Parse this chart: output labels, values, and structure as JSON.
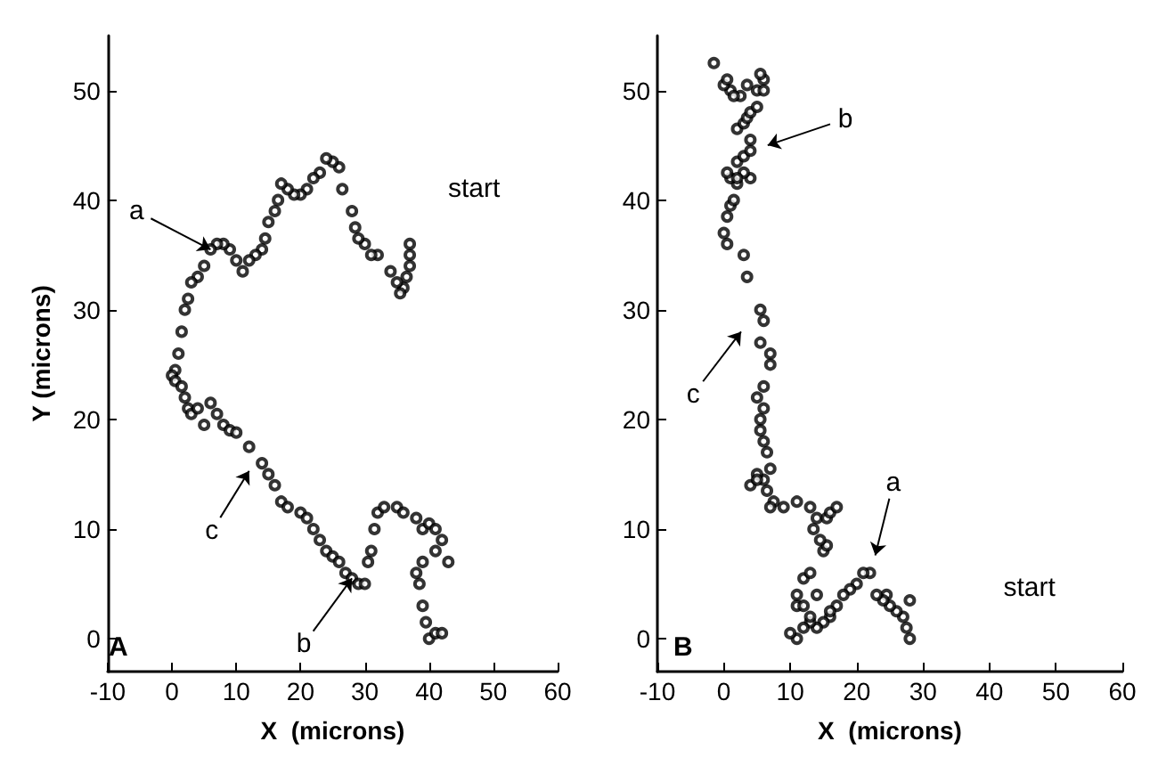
{
  "chart_data": [
    {
      "type": "scatter",
      "title": "A",
      "xlabel": "X  (microns)",
      "ylabel": "Y (microns)",
      "xlim": [
        -10,
        60
      ],
      "ylim": [
        -3,
        55
      ],
      "xticks": [
        -10,
        0,
        10,
        20,
        30,
        40,
        50,
        60
      ],
      "yticks": [
        0,
        10,
        20,
        30,
        40,
        50
      ],
      "marker": "circle",
      "annotations": [
        {
          "text": "a",
          "x": 6,
          "y": 35.5
        },
        "start",
        "c",
        {
          "text": "b",
          "x": 28,
          "y": 5.5
        }
      ],
      "series": [
        {
          "color": "#000000",
          "x": [
            37,
            37,
            37,
            36.5,
            36,
            35.5,
            35,
            34,
            32,
            31,
            30,
            29,
            28.5,
            28,
            26.5,
            26,
            25,
            24,
            23,
            22,
            21,
            20,
            19,
            18,
            17,
            16.5,
            16,
            15,
            14.5,
            14,
            13,
            12,
            11,
            10,
            9,
            8,
            7,
            6,
            5,
            4,
            3,
            2.5,
            2,
            1.5,
            1,
            0.5,
            0,
            0.5,
            1.5,
            2,
            2.5,
            3,
            4,
            5,
            6,
            7,
            8,
            9,
            10,
            12,
            14,
            15,
            16,
            17,
            18,
            20,
            21,
            22,
            23,
            24,
            25,
            26,
            27,
            28,
            29,
            30,
            30.5,
            31,
            31.5,
            32,
            33,
            35,
            36,
            38,
            39,
            40,
            41,
            42,
            43,
            41,
            39,
            38,
            38.5,
            39,
            39.5,
            40,
            41,
            42
          ],
          "values": [
            36,
            35,
            34,
            33,
            32,
            31.5,
            32.5,
            33.5,
            35,
            35,
            36,
            36.5,
            37.5,
            39,
            41,
            43,
            43.5,
            43.8,
            42.5,
            42,
            41,
            40.5,
            40.5,
            41,
            41.5,
            40,
            39,
            38,
            36.5,
            35.5,
            35,
            34.5,
            33.5,
            34.5,
            35.5,
            36,
            36,
            35.5,
            34,
            33,
            32.5,
            31,
            30,
            28,
            26,
            24.5,
            24,
            23.5,
            23,
            22,
            21,
            20.5,
            21,
            19.5,
            21.5,
            20.5,
            19.5,
            19,
            18.8,
            17.5,
            16,
            15,
            14,
            12.5,
            12,
            11.5,
            11,
            10,
            9,
            8,
            7.5,
            7,
            6,
            5.5,
            5,
            5,
            7,
            8,
            10,
            11.5,
            12,
            12,
            11.5,
            11,
            10,
            10.5,
            10,
            9,
            7,
            8,
            7,
            6,
            5,
            3,
            1.5,
            0,
            0.5,
            0.5
          ]
        }
      ]
    },
    {
      "type": "scatter",
      "title": "B",
      "xlabel": "X  (microns)",
      "xlim": [
        -10,
        60
      ],
      "ylim": [
        -3,
        55
      ],
      "xticks": [
        -10,
        0,
        10,
        20,
        30,
        40,
        50,
        60
      ],
      "yticks": [
        0,
        10,
        20,
        30,
        40,
        50
      ],
      "marker": "circle",
      "annotations": [
        "b",
        "c",
        "a",
        "start"
      ],
      "series": [
        {
          "color": "#000000",
          "x": [
            28,
            28,
            27.5,
            27,
            26,
            25,
            24.5,
            24,
            23,
            22,
            21,
            20,
            19,
            18,
            17,
            16,
            15,
            14,
            13,
            12,
            11,
            10,
            11,
            11,
            12,
            13,
            14,
            13,
            12,
            16,
            15,
            15.5,
            14.5,
            13.5,
            14,
            15.5,
            16,
            17,
            13,
            11,
            9,
            7.5,
            7,
            6.5,
            6,
            5,
            4,
            5,
            7,
            6.5,
            6,
            5.5,
            5.5,
            6,
            5,
            6,
            7,
            7,
            5.5,
            6,
            5.5,
            3.5,
            3,
            0.5,
            0,
            0.5,
            1,
            1.5,
            2,
            1,
            0.5,
            2,
            3,
            4,
            4,
            2,
            3,
            3.5,
            4,
            5,
            2.5,
            1,
            0,
            0.5,
            1.5,
            3.5,
            5,
            6,
            5.5,
            6,
            -1.5,
            4,
            3,
            2
          ],
          "values": [
            3.5,
            0,
            1,
            2,
            2.5,
            3,
            4,
            3.5,
            4,
            6,
            6,
            5,
            4.5,
            4,
            3,
            2,
            1.5,
            1,
            1.5,
            1,
            0,
            0.5,
            3,
            4,
            5.5,
            6,
            4,
            2,
            3,
            2.5,
            8,
            8.5,
            9,
            10,
            11,
            11,
            11.5,
            12,
            12,
            12.5,
            12,
            12.5,
            12,
            13.5,
            14.5,
            15,
            14,
            14.5,
            15.5,
            17,
            18,
            19,
            20,
            21,
            22,
            23,
            25,
            26,
            27,
            29,
            30,
            33,
            35,
            36,
            37,
            38.5,
            39.5,
            40,
            41.5,
            42,
            42.5,
            43.5,
            44,
            44.5,
            45.5,
            46.5,
            47,
            47.5,
            48,
            48.5,
            49.5,
            50,
            50.5,
            51,
            49.5,
            50.5,
            50,
            51,
            51.5,
            50,
            52.5,
            42,
            42.5,
            42
          ]
        }
      ]
    }
  ]
}
